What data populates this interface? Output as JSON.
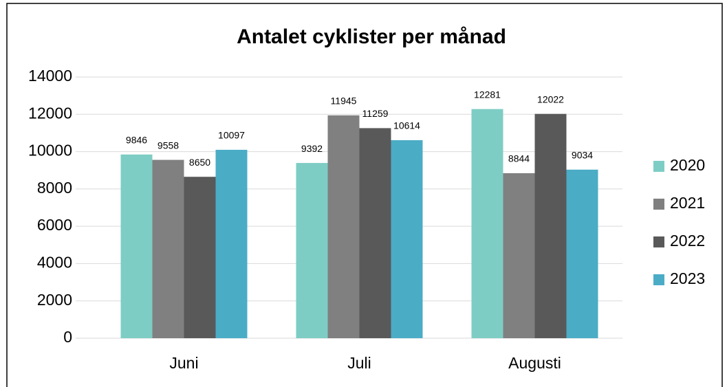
{
  "chart_data": {
    "type": "bar",
    "title": "Antalet cyklister per månad",
    "categories": [
      "Juni",
      "Juli",
      "Augusti"
    ],
    "series": [
      {
        "name": "2020",
        "color": "#7ecdc4",
        "values": [
          9846,
          9392,
          12281
        ]
      },
      {
        "name": "2021",
        "color": "#808080",
        "values": [
          9558,
          11945,
          8844
        ]
      },
      {
        "name": "2022",
        "color": "#595959",
        "values": [
          8650,
          11259,
          12022
        ]
      },
      {
        "name": "2023",
        "color": "#4bacc6",
        "values": [
          10097,
          10614,
          9034
        ]
      }
    ],
    "ylim": [
      0,
      14000
    ],
    "yticks": [
      0,
      2000,
      4000,
      6000,
      8000,
      10000,
      12000,
      14000
    ],
    "grid": true,
    "legend": "right"
  }
}
